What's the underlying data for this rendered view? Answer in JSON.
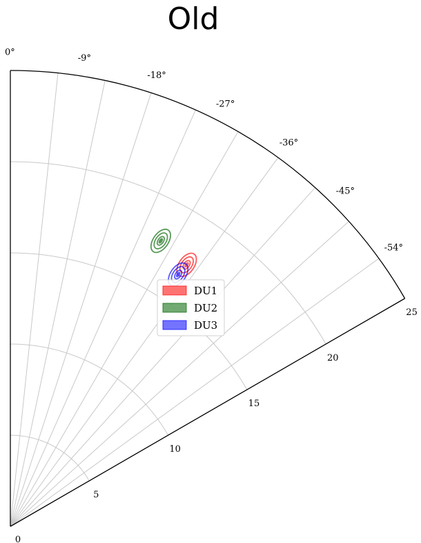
{
  "chart_data": {
    "type": "polar-scatter",
    "title": "Old",
    "theta_range_deg": [
      -60,
      0
    ],
    "theta_ticks": [
      "0°",
      "-9°",
      "-18°",
      "-27°",
      "-36°",
      "-45°",
      "-54°"
    ],
    "r_range": [
      0,
      25
    ],
    "r_ticks": [
      "0",
      "5",
      "10",
      "15",
      "20",
      "25"
    ],
    "grid": true,
    "legend_position": "center",
    "series": [
      {
        "name": "DU1",
        "color": "#ff0000",
        "center": {
          "theta": -34,
          "r": 17.3
        }
      },
      {
        "name": "DU2",
        "color": "#006400",
        "center": {
          "theta": -27.8,
          "r": 17.7
        }
      },
      {
        "name": "DU3",
        "color": "#0000ff",
        "center": {
          "theta": -33.7,
          "r": 16.6
        }
      }
    ]
  }
}
